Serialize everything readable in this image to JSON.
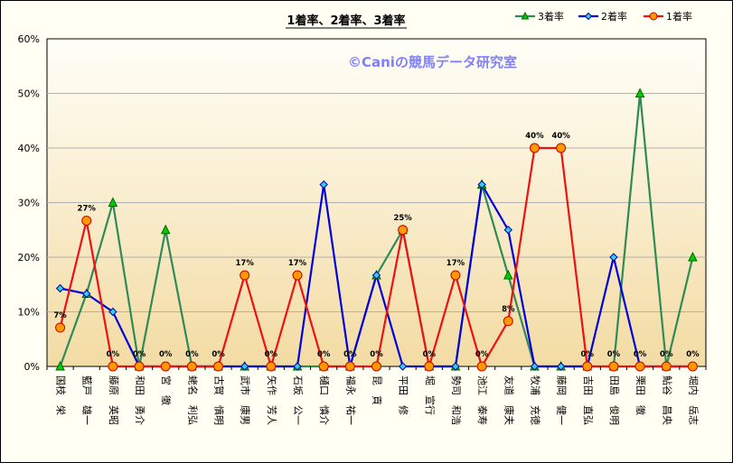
{
  "chart_data": {
    "type": "line",
    "title": "1着率、2着率、3着率",
    "watermark": "©Caniの競馬データ研究室",
    "categories": [
      "国枝　栄",
      "藍戸　雄一",
      "藤原　英昭",
      "和田　勇介",
      "宮　徹",
      "蛯名　利弘",
      "古賀　慎明",
      "武市　康男",
      "矢作　芳人",
      "石坂　公一",
      "樋口　慎介",
      "福永　祐一",
      "昆　貢",
      "平田　修",
      "堀　宣行",
      "勢司　和浩",
      "池江　泰寿",
      "友道　康夫",
      "牧浦　充徳",
      "藤岡　健一",
      "吉田　直弘",
      "田島　俊明",
      "栗田　徹",
      "鮎谷　昌央",
      "堀内　岳志"
    ],
    "yticks": [
      "0%",
      "10%",
      "20%",
      "30%",
      "40%",
      "50%",
      "60%"
    ],
    "ylim": [
      0,
      60
    ],
    "grid": true,
    "legend_position": "top-right",
    "series": [
      {
        "name": "3着率",
        "color": "#2e8b57",
        "marker": "triangle",
        "marker_fill": "#00cc00",
        "values": [
          0,
          13.3,
          30,
          0,
          25,
          0,
          0,
          0,
          0,
          0,
          0,
          0,
          16.7,
          25,
          0,
          0,
          33.3,
          16.7,
          0,
          0,
          0,
          0,
          50,
          0,
          20
        ]
      },
      {
        "name": "2着率",
        "color": "#0000dd",
        "marker": "diamond",
        "marker_fill": "#33ccee",
        "values": [
          14.3,
          13.3,
          10,
          0,
          0,
          0,
          0,
          0,
          0,
          0,
          33.3,
          0,
          16.7,
          0,
          0,
          0,
          33.3,
          25,
          0,
          0,
          0,
          20,
          0,
          0,
          0
        ]
      },
      {
        "name": "1着率",
        "color": "#ee1111",
        "marker": "circle",
        "marker_fill": "#ff9900",
        "values": [
          7.1,
          26.7,
          0,
          0,
          0,
          0,
          0,
          16.7,
          0,
          16.7,
          0,
          0,
          0,
          25,
          0,
          16.7,
          0,
          8.3,
          40,
          40,
          0,
          0,
          0,
          0,
          0
        ]
      }
    ],
    "data_labels": [
      {
        "series": 2,
        "index": 0,
        "text": "7%"
      },
      {
        "series": 2,
        "index": 1,
        "text": "27%"
      },
      {
        "series": 2,
        "index": 2,
        "text": "0%"
      },
      {
        "series": 2,
        "index": 3,
        "text": "0%"
      },
      {
        "series": 2,
        "index": 4,
        "text": "0%"
      },
      {
        "series": 2,
        "index": 5,
        "text": "0%"
      },
      {
        "series": 2,
        "index": 6,
        "text": "0%"
      },
      {
        "series": 2,
        "index": 7,
        "text": "17%"
      },
      {
        "series": 2,
        "index": 8,
        "text": "0%"
      },
      {
        "series": 2,
        "index": 9,
        "text": "17%"
      },
      {
        "series": 2,
        "index": 10,
        "text": "0%"
      },
      {
        "series": 2,
        "index": 11,
        "text": "0%"
      },
      {
        "series": 2,
        "index": 12,
        "text": "0%"
      },
      {
        "series": 2,
        "index": 13,
        "text": "25%"
      },
      {
        "series": 2,
        "index": 14,
        "text": "0%"
      },
      {
        "series": 2,
        "index": 15,
        "text": "17%"
      },
      {
        "series": 2,
        "index": 16,
        "text": "0%"
      },
      {
        "series": 2,
        "index": 17,
        "text": "8%"
      },
      {
        "series": 2,
        "index": 18,
        "text": "40%"
      },
      {
        "series": 2,
        "index": 19,
        "text": "40%"
      },
      {
        "series": 2,
        "index": 20,
        "text": "0%"
      },
      {
        "series": 2,
        "index": 21,
        "text": "0%"
      },
      {
        "series": 2,
        "index": 22,
        "text": "0%"
      },
      {
        "series": 2,
        "index": 23,
        "text": "0%"
      },
      {
        "series": 2,
        "index": 24,
        "text": "0%"
      }
    ]
  }
}
